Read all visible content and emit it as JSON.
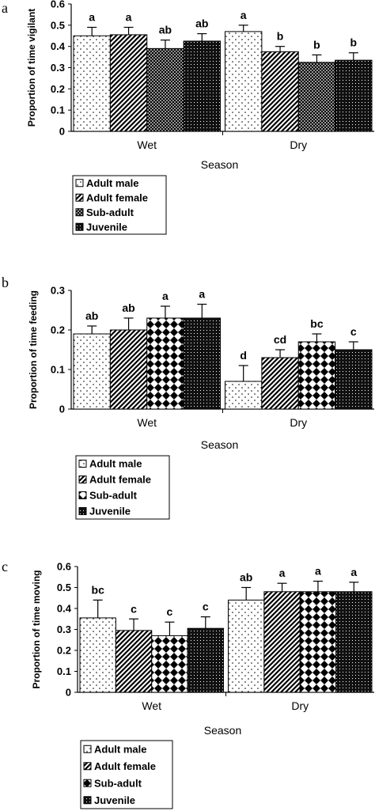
{
  "chart_data": [
    {
      "type": "bar",
      "panel": "a",
      "ylabel": "Proportion of time vigilant",
      "xlabel": "Season",
      "categories": [
        "Wet",
        "Dry"
      ],
      "ylim": [
        0,
        0.6
      ],
      "yticks": [
        "0",
        "0.1",
        "0.2",
        "0.3",
        "0.4",
        "0.5",
        "0.6"
      ],
      "series": [
        {
          "name": "Adult male",
          "values": [
            0.45,
            0.47
          ],
          "errors": [
            0.04,
            0.03
          ],
          "letters": [
            "a",
            "a"
          ],
          "pattern": "dots-sparse"
        },
        {
          "name": "Adult female",
          "values": [
            0.455,
            0.375
          ],
          "errors": [
            0.035,
            0.025
          ],
          "letters": [
            "a",
            "b"
          ],
          "pattern": "diag"
        },
        {
          "name": "Sub-adult",
          "values": [
            0.39,
            0.325
          ],
          "errors": [
            0.04,
            0.035
          ],
          "letters": [
            "ab",
            "b"
          ],
          "pattern": "dots-dense"
        },
        {
          "name": "Juvenile",
          "values": [
            0.425,
            0.335
          ],
          "errors": [
            0.035,
            0.035
          ],
          "letters": [
            "ab",
            "b"
          ],
          "pattern": "grid-dark"
        }
      ]
    },
    {
      "type": "bar",
      "panel": "b",
      "ylabel": "Proportion of time feeding",
      "xlabel": "Season",
      "categories": [
        "Wet",
        "Dry"
      ],
      "ylim": [
        0,
        0.3
      ],
      "yticks": [
        "0",
        "0.1",
        "0.2",
        "0.3"
      ],
      "series": [
        {
          "name": "Adult male",
          "values": [
            0.19,
            0.07
          ],
          "errors": [
            0.02,
            0.04
          ],
          "letters": [
            "ab",
            "d"
          ],
          "pattern": "dots-sparse"
        },
        {
          "name": "Adult female",
          "values": [
            0.2,
            0.13
          ],
          "errors": [
            0.03,
            0.02
          ],
          "letters": [
            "ab",
            "cd"
          ],
          "pattern": "diag"
        },
        {
          "name": "Sub-adult",
          "values": [
            0.23,
            0.17
          ],
          "errors": [
            0.03,
            0.02
          ],
          "letters": [
            "a",
            "bc"
          ],
          "pattern": "checker"
        },
        {
          "name": "Juvenile",
          "values": [
            0.23,
            0.15
          ],
          "errors": [
            0.035,
            0.02
          ],
          "letters": [
            "a",
            "c"
          ],
          "pattern": "grid-dark"
        }
      ]
    },
    {
      "type": "bar",
      "panel": "c",
      "ylabel": "Proportion of time moving",
      "xlabel": "Season",
      "categories": [
        "Wet",
        "Dry"
      ],
      "ylim": [
        0,
        0.6
      ],
      "yticks": [
        "0",
        "0.1",
        "0.2",
        "0.3",
        "0.4",
        "0.5",
        "0.6"
      ],
      "series": [
        {
          "name": "Adult male",
          "values": [
            0.355,
            0.44
          ],
          "errors": [
            0.085,
            0.06
          ],
          "letters": [
            "bc",
            "ab"
          ],
          "pattern": "dots-sparse"
        },
        {
          "name": "Adult female",
          "values": [
            0.295,
            0.48
          ],
          "errors": [
            0.055,
            0.04
          ],
          "letters": [
            "c",
            "a"
          ],
          "pattern": "diag"
        },
        {
          "name": "Sub-adult",
          "values": [
            0.27,
            0.48
          ],
          "errors": [
            0.065,
            0.05
          ],
          "letters": [
            "c",
            "a"
          ],
          "pattern": "checker"
        },
        {
          "name": "Juvenile",
          "values": [
            0.305,
            0.48
          ],
          "errors": [
            0.055,
            0.045
          ],
          "letters": [
            "c",
            "a"
          ],
          "pattern": "grid-dark"
        }
      ]
    }
  ]
}
